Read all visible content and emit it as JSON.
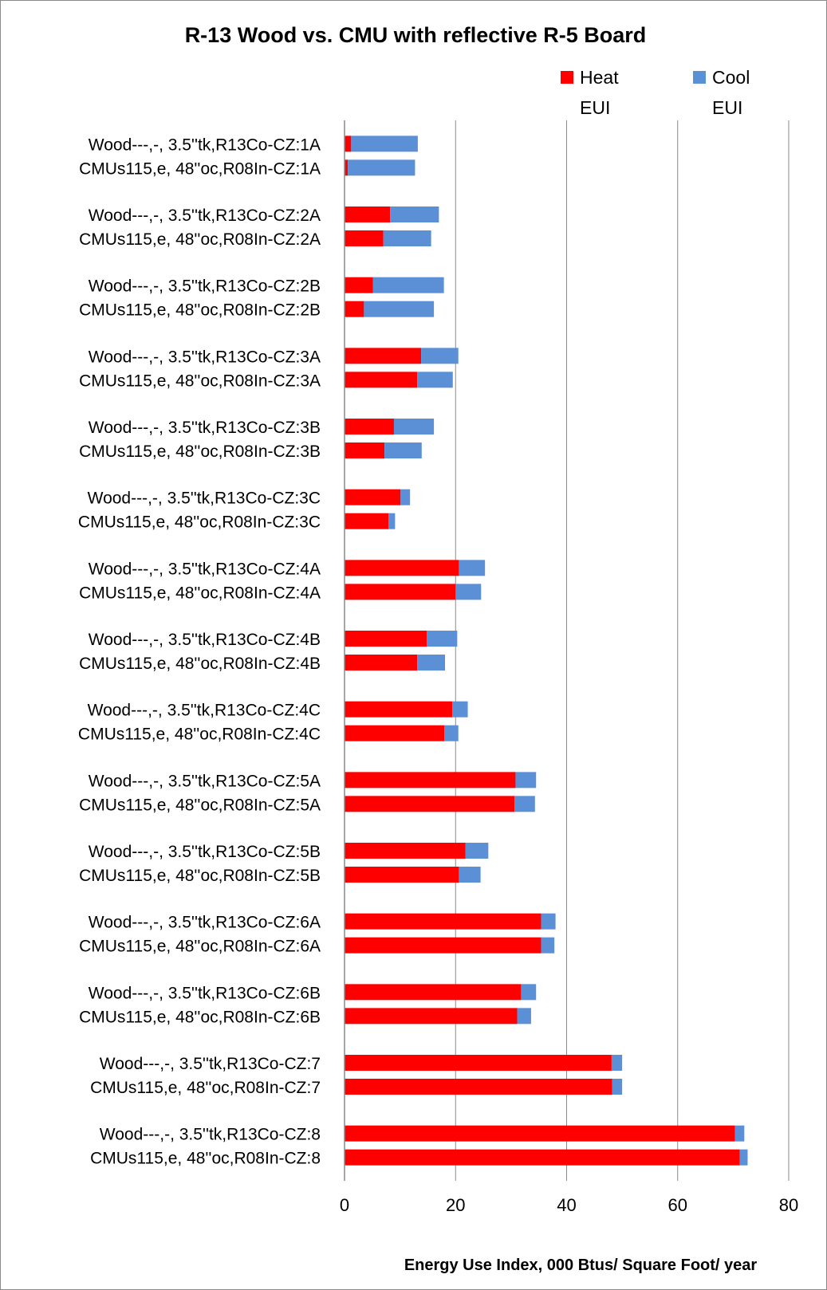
{
  "chart_data": {
    "type": "bar",
    "stacked": true,
    "orientation": "horizontal",
    "title": "R-13 Wood vs. CMU with reflective R-5 Board",
    "xlabel": "Energy Use Index, 000 Btus/ Square Foot/ year",
    "ylabel": "",
    "xlim": [
      0,
      80
    ],
    "xticks": [
      "0",
      "20",
      "40",
      "60",
      "80"
    ],
    "grid": "vertical",
    "legend_position": "top-right",
    "categories": [
      "Wood---,-, 3.5''tk,R13Co-CZ:1A",
      "CMUs115,e, 48''oc,R08In-CZ:1A",
      "Wood---,-, 3.5''tk,R13Co-CZ:2A",
      "CMUs115,e, 48''oc,R08In-CZ:2A",
      "Wood---,-, 3.5''tk,R13Co-CZ:2B",
      "CMUs115,e, 48''oc,R08In-CZ:2B",
      "Wood---,-, 3.5''tk,R13Co-CZ:3A",
      "CMUs115,e, 48''oc,R08In-CZ:3A",
      "Wood---,-, 3.5''tk,R13Co-CZ:3B",
      "CMUs115,e, 48''oc,R08In-CZ:3B",
      "Wood---,-, 3.5''tk,R13Co-CZ:3C",
      "CMUs115,e, 48''oc,R08In-CZ:3C",
      "Wood---,-, 3.5''tk,R13Co-CZ:4A",
      "CMUs115,e, 48''oc,R08In-CZ:4A",
      "Wood---,-, 3.5''tk,R13Co-CZ:4B",
      "CMUs115,e, 48''oc,R08In-CZ:4B",
      "Wood---,-, 3.5''tk,R13Co-CZ:4C",
      "CMUs115,e, 48''oc,R08In-CZ:4C",
      "Wood---,-, 3.5''tk,R13Co-CZ:5A",
      "CMUs115,e, 48''oc,R08In-CZ:5A",
      "Wood---,-, 3.5''tk,R13Co-CZ:5B",
      "CMUs115,e, 48''oc,R08In-CZ:5B",
      "Wood---,-, 3.5''tk,R13Co-CZ:6A",
      "CMUs115,e, 48''oc,R08In-CZ:6A",
      "Wood---,-, 3.5''tk,R13Co-CZ:6B",
      "CMUs115,e, 48''oc,R08In-CZ:6B",
      "Wood---,-, 3.5''tk,R13Co-CZ:7",
      "CMUs115,e, 48''oc,R08In-CZ:7",
      "Wood---,-, 3.5''tk,R13Co-CZ:8",
      "CMUs115,e, 48''oc,R08In-CZ:8"
    ],
    "series": [
      {
        "name": "Heat EUI",
        "color": "#ff0000",
        "values": [
          1.2,
          0.6,
          8.2,
          7.0,
          5.1,
          3.5,
          13.8,
          13.1,
          8.9,
          7.2,
          10.1,
          7.9,
          20.6,
          20.0,
          14.8,
          13.1,
          19.4,
          18.0,
          30.8,
          30.6,
          21.8,
          20.6,
          35.4,
          35.4,
          31.8,
          31.1,
          48.1,
          48.2,
          70.3,
          71.2
        ]
      },
      {
        "name": "Cool EUI",
        "color": "#5b8fd6",
        "values": [
          12.0,
          12.1,
          8.8,
          8.6,
          12.8,
          12.6,
          6.7,
          6.4,
          7.2,
          6.7,
          1.7,
          1.2,
          4.7,
          4.6,
          5.5,
          5.0,
          2.8,
          2.5,
          3.7,
          3.7,
          4.1,
          3.9,
          2.6,
          2.4,
          2.7,
          2.5,
          1.9,
          1.8,
          1.7,
          1.4
        ]
      }
    ]
  }
}
